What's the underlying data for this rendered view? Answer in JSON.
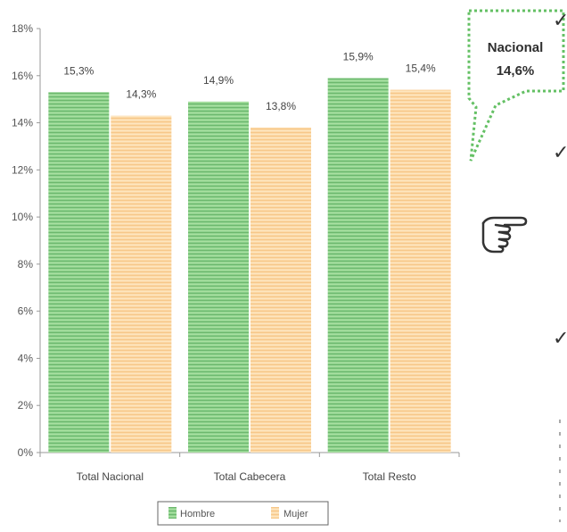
{
  "chart_data": {
    "type": "bar",
    "categories": [
      "Total Nacional",
      "Total Cabecera",
      "Total Resto"
    ],
    "series": [
      {
        "name": "Hombre",
        "values": [
          15.3,
          14.9,
          15.9
        ],
        "labels": [
          "15,3%",
          "14,9%",
          "15,9%"
        ],
        "color": "#7fc97f"
      },
      {
        "name": "Mujer",
        "values": [
          14.3,
          13.8,
          15.4
        ],
        "labels": [
          "14,3%",
          "13,8%",
          "15,4%"
        ],
        "color": "#fbd7a6"
      }
    ],
    "yticks": [
      0,
      2,
      4,
      6,
      8,
      10,
      12,
      14,
      16,
      18
    ],
    "ytick_labels": [
      "0%",
      "2%",
      "4%",
      "6%",
      "8%",
      "10%",
      "12%",
      "14%",
      "16%",
      "18%"
    ],
    "ylim": [
      0,
      18
    ],
    "grid": false,
    "legend_position": "bottom"
  },
  "callout": {
    "line1": "Nacional",
    "line2": "14,6%",
    "border_color": "#64c064"
  },
  "side_marks": {
    "check": "✓",
    "pointer_icon": "pointing-hand-icon"
  }
}
